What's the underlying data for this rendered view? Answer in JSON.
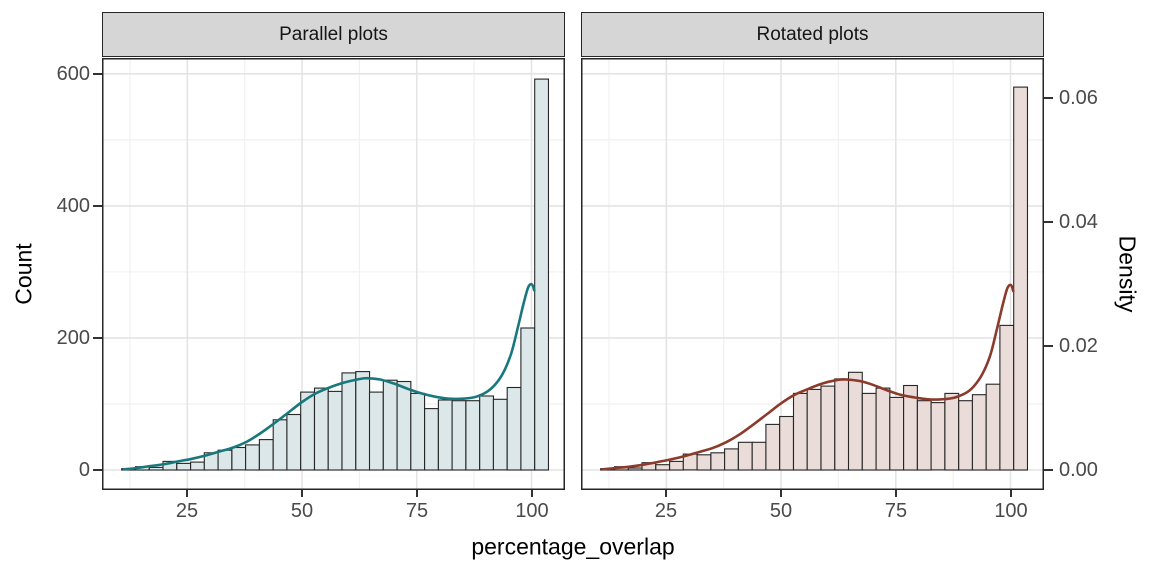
{
  "figure": {
    "xlabel": "percentage_overlap",
    "left_axis": {
      "title": "Count",
      "ticks": [
        0,
        200,
        400,
        600
      ],
      "minor": [
        100,
        300,
        500
      ]
    },
    "right_axis": {
      "title": "Density",
      "ticks": [
        "0.00",
        "0.02",
        "0.04",
        "0.06"
      ],
      "density_to_count": 9400
    },
    "x_axis": {
      "ticks": [
        25,
        50,
        75,
        100
      ],
      "minor": [
        12.5,
        37.5,
        62.5,
        87.5
      ]
    },
    "colors": {
      "strip_fill": "#d6d6d6",
      "panel_border": "#262626",
      "grid_major": "#e4e4e4",
      "grid_minor": "#f1f1f1",
      "bar_border": "#262626",
      "tick_mark": "#333333",
      "axis_text": "#4a4a4a",
      "title_text": "#000000",
      "parallel_fill": "#dbe7e8",
      "parallel_line": "#18787c",
      "rotated_fill": "#eadcd9",
      "rotated_line": "#8b3a2c"
    }
  },
  "chart_data": [
    {
      "type": "histogram+density",
      "facet_label": "Parallel plots",
      "x_field": "percentage_overlap",
      "y_left": "Count",
      "y_right": "Density",
      "xlim_data": [
        6.4,
        107.3
      ],
      "count_axis_range": [
        -30.3,
        624
      ],
      "bin_start": 10.7,
      "bin_width": 3,
      "counts": [
        2,
        5,
        4,
        13,
        10,
        12,
        26,
        30,
        34,
        38,
        46,
        76,
        84,
        118,
        124,
        119,
        147,
        149,
        118,
        136,
        134,
        116,
        93,
        106,
        105,
        105,
        112,
        107,
        125,
        215,
        592
      ],
      "bar_fill": "#dbe7e8",
      "curve_color": "#18787c",
      "curve_points": [
        [
          11.2,
          1
        ],
        [
          14,
          3
        ],
        [
          17,
          6
        ],
        [
          20,
          9
        ],
        [
          23,
          13
        ],
        [
          26,
          17
        ],
        [
          29,
          22
        ],
        [
          32,
          28
        ],
        [
          35,
          34
        ],
        [
          38,
          43
        ],
        [
          41,
          56
        ],
        [
          44,
          71
        ],
        [
          47,
          87
        ],
        [
          50,
          103
        ],
        [
          53,
          116
        ],
        [
          56,
          125
        ],
        [
          59,
          132
        ],
        [
          62,
          137
        ],
        [
          64,
          139
        ],
        [
          67,
          137
        ],
        [
          70,
          131
        ],
        [
          73,
          123
        ],
        [
          76,
          116
        ],
        [
          79,
          111
        ],
        [
          82,
          108
        ],
        [
          85,
          108
        ],
        [
          88,
          111
        ],
        [
          91,
          122
        ],
        [
          93.5,
          143
        ],
        [
          95.5,
          175
        ],
        [
          97,
          215
        ],
        [
          98.3,
          253
        ],
        [
          99.3,
          277
        ],
        [
          100.1,
          281
        ],
        [
          100.6,
          272
        ]
      ]
    },
    {
      "type": "histogram+density",
      "facet_label": "Rotated plots",
      "x_field": "percentage_overlap",
      "y_left": "Count",
      "y_right": "Density",
      "xlim_data": [
        6.4,
        107.3
      ],
      "count_axis_range": [
        -30.3,
        624
      ],
      "bin_start": 10.7,
      "bin_width": 3,
      "counts": [
        2,
        5,
        3,
        11,
        8,
        13,
        24,
        23,
        26,
        32,
        42,
        42,
        69,
        81,
        116,
        122,
        127,
        138,
        148,
        116,
        124,
        110,
        128,
        105,
        102,
        116,
        105,
        114,
        130,
        219,
        580
      ],
      "bar_fill": "#eadcd9",
      "curve_color": "#8b3a2c",
      "curve_points": [
        [
          11.2,
          1
        ],
        [
          14,
          3
        ],
        [
          17,
          5
        ],
        [
          20,
          8
        ],
        [
          23,
          12
        ],
        [
          26,
          16
        ],
        [
          29,
          21
        ],
        [
          32,
          27
        ],
        [
          35,
          33
        ],
        [
          38,
          42
        ],
        [
          41,
          54
        ],
        [
          44,
          69
        ],
        [
          47,
          85
        ],
        [
          50,
          101
        ],
        [
          53,
          114
        ],
        [
          56,
          123
        ],
        [
          59,
          131
        ],
        [
          62,
          136
        ],
        [
          64,
          137
        ],
        [
          67,
          135
        ],
        [
          70,
          129
        ],
        [
          73,
          121
        ],
        [
          76,
          114
        ],
        [
          79,
          110
        ],
        [
          82,
          107
        ],
        [
          85,
          107
        ],
        [
          88,
          110
        ],
        [
          91,
          120
        ],
        [
          93.5,
          141
        ],
        [
          95.5,
          172
        ],
        [
          97,
          212
        ],
        [
          98.3,
          250
        ],
        [
          99.3,
          275
        ],
        [
          100.1,
          280
        ],
        [
          100.6,
          271
        ]
      ]
    }
  ]
}
